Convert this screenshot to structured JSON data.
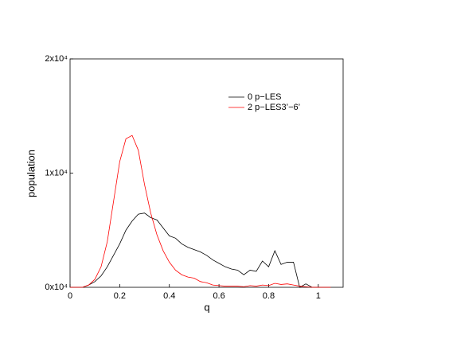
{
  "chart_data": {
    "type": "line",
    "xlabel": "q",
    "ylabel": "population",
    "x": [
      0,
      0.025,
      0.05,
      0.075,
      0.1,
      0.125,
      0.15,
      0.175,
      0.2,
      0.225,
      0.25,
      0.275,
      0.3,
      0.325,
      0.35,
      0.375,
      0.4,
      0.425,
      0.45,
      0.475,
      0.5,
      0.525,
      0.55,
      0.575,
      0.6,
      0.625,
      0.65,
      0.675,
      0.7,
      0.725,
      0.75,
      0.775,
      0.8,
      0.825,
      0.85,
      0.875,
      0.9,
      0.925,
      0.95,
      0.975,
      1.0,
      1.025,
      1.05
    ],
    "series": [
      {
        "name": "0 p−LES",
        "color": "#000000",
        "values": [
          0,
          0,
          0,
          200,
          500,
          1000,
          1800,
          2800,
          3800,
          5000,
          5800,
          6400,
          6500,
          6100,
          5900,
          5200,
          4500,
          4300,
          3800,
          3500,
          3300,
          3100,
          2800,
          2400,
          2100,
          1800,
          1600,
          1500,
          1100,
          1500,
          1400,
          2300,
          1800,
          3200,
          2000,
          2200,
          2200,
          0,
          300,
          0,
          0,
          0,
          0
        ]
      },
      {
        "name": "2 p−LES3’−6’",
        "color": "#ff0000",
        "values": [
          0,
          0,
          0,
          200,
          700,
          1800,
          4000,
          7500,
          11000,
          13000,
          13300,
          12000,
          9000,
          6500,
          4600,
          3200,
          2200,
          1500,
          1100,
          900,
          800,
          500,
          400,
          200,
          150,
          100,
          100,
          100,
          50,
          150,
          100,
          200,
          150,
          350,
          250,
          300,
          200,
          100,
          50,
          0,
          0,
          0,
          0
        ]
      }
    ],
    "xlim": [
      0,
      1.1
    ],
    "xticks": [
      0,
      0.2,
      0.4,
      0.6,
      0.8,
      1
    ],
    "ylim": [
      0,
      20000
    ],
    "yticks": [
      {
        "value": 0,
        "label": "0x10⁴"
      },
      {
        "value": 10000,
        "label": "1x10⁴"
      },
      {
        "value": 20000,
        "label": "2x10⁴"
      }
    ],
    "legend": "upper right"
  }
}
